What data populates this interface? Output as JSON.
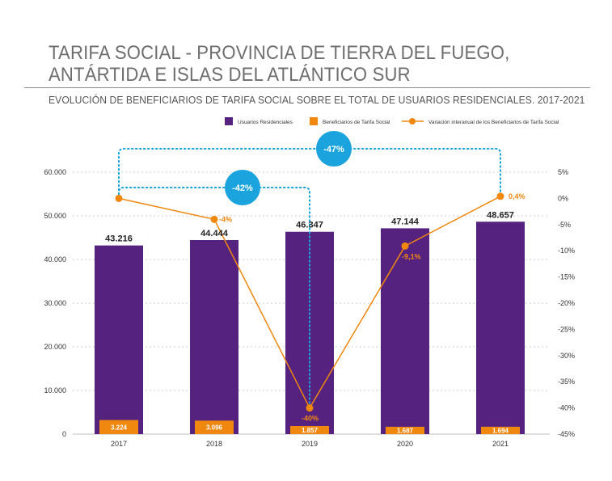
{
  "title_line1": "TARIFA SOCIAL - PROVINCIA DE TIERRA DEL FUEGO,",
  "title_line2": "ANTÁRTIDA E ISLAS DEL ATLÁNTICO SUR",
  "subtitle": "EVOLUCIÓN DE BENEFICIARIOS DE TARIFA SOCIAL SOBRE EL TOTAL DE USUARIOS RESIDENCIALES. 2017-2021",
  "colors": {
    "usuarios": "#55237f",
    "beneficiarios": "#f0870f",
    "variacion": "#f0870f",
    "bracket": "#1aa3dc",
    "label_usuarios": "#222222",
    "label_variacion": "#f0870f"
  },
  "chart_data": {
    "type": "bar",
    "categories": [
      "2017",
      "2018",
      "2019",
      "2020",
      "2021"
    ],
    "series": [
      {
        "name": "Usuarios Residenciales",
        "kind": "bar",
        "axis": "left",
        "values": [
          43216,
          44444,
          46347,
          47144,
          48657
        ],
        "labels": [
          "43.216",
          "44.444",
          "46.347",
          "47.144",
          "48.657"
        ]
      },
      {
        "name": "Beneficiarios de Tarifa Social",
        "kind": "bar",
        "axis": "left",
        "values": [
          3224,
          3096,
          1857,
          1687,
          1694
        ],
        "labels": [
          "3.224",
          "3.096",
          "1.857",
          "1.687",
          "1.694"
        ]
      },
      {
        "name": "Variación interanual de los Beneficiarios de Tarifa Social",
        "kind": "line",
        "axis": "right",
        "values": [
          0,
          -4,
          -40,
          -9.1,
          0.4
        ],
        "labels": [
          "",
          "-4%",
          "-40%",
          "-9,1%",
          "0,4%"
        ]
      }
    ],
    "y_left": {
      "min": 0,
      "max": 60000,
      "ticks": [
        0,
        10000,
        20000,
        30000,
        40000,
        50000,
        60000
      ],
      "tick_labels": [
        "0",
        "10.000",
        "20.000",
        "30.000",
        "40.000",
        "50.000",
        "60.000"
      ]
    },
    "y_right": {
      "min": -45,
      "max": 5,
      "ticks": [
        5,
        0,
        -5,
        -10,
        -15,
        -20,
        -25,
        -30,
        -35,
        -40,
        -45
      ],
      "tick_labels": [
        "5%",
        "0%",
        "-5%",
        "-10%",
        "-15%",
        "-20%",
        "-25%",
        "-30%",
        "-35%",
        "-40%",
        "-45%"
      ]
    },
    "grid": "horizontal-dotted",
    "legend": "top",
    "annotations": [
      {
        "label": "-42%",
        "from": "2017",
        "to": "2019"
      },
      {
        "label": "-47%",
        "from": "2017",
        "to": "2021"
      }
    ]
  }
}
